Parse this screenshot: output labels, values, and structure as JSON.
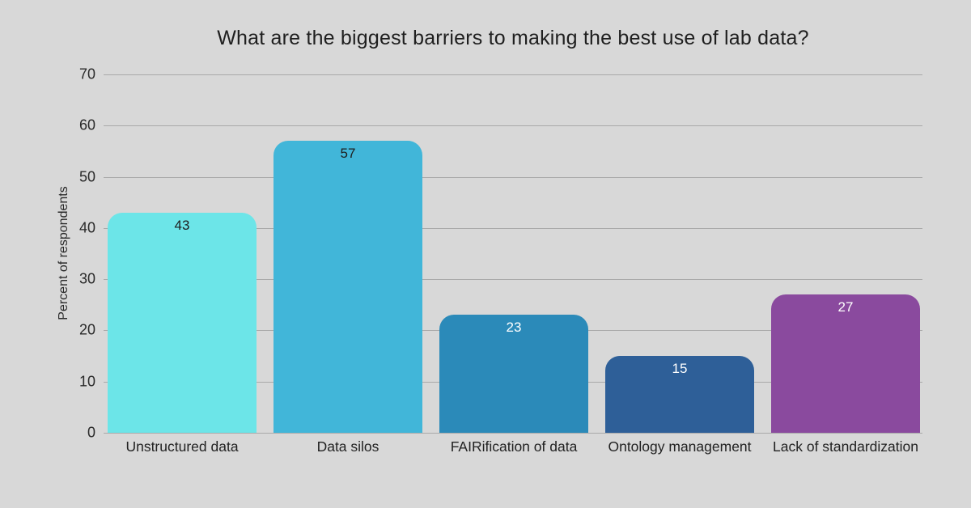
{
  "chart_data": {
    "type": "bar",
    "title": "What are the biggest barriers to making the best use of lab data?",
    "xlabel": "",
    "ylabel": "Percent of respondents",
    "categories": [
      "Unstructured data",
      "Data silos",
      "FAIRification of data",
      "Ontology management",
      "Lack of standardization"
    ],
    "values": [
      43,
      57,
      23,
      15,
      27
    ],
    "value_labels": [
      "43",
      "57",
      "23",
      "15",
      "27"
    ],
    "bar_colors": [
      "#6ce5e8",
      "#41b6d9",
      "#2b8ab9",
      "#2e5f98",
      "#8a4a9e"
    ],
    "value_label_colors": [
      "#1e1e1e",
      "#1e1e1e",
      "#ffffff",
      "#ffffff",
      "#ffffff"
    ],
    "yticks": [
      0,
      10,
      20,
      30,
      40,
      50,
      60,
      70
    ],
    "ylim": [
      0,
      70
    ],
    "grid": "horizontal-only",
    "legend": "none",
    "background_color": "#d8d8d8",
    "gridline_color": "#a9a9a9",
    "text_color": "#1f1f1f"
  }
}
